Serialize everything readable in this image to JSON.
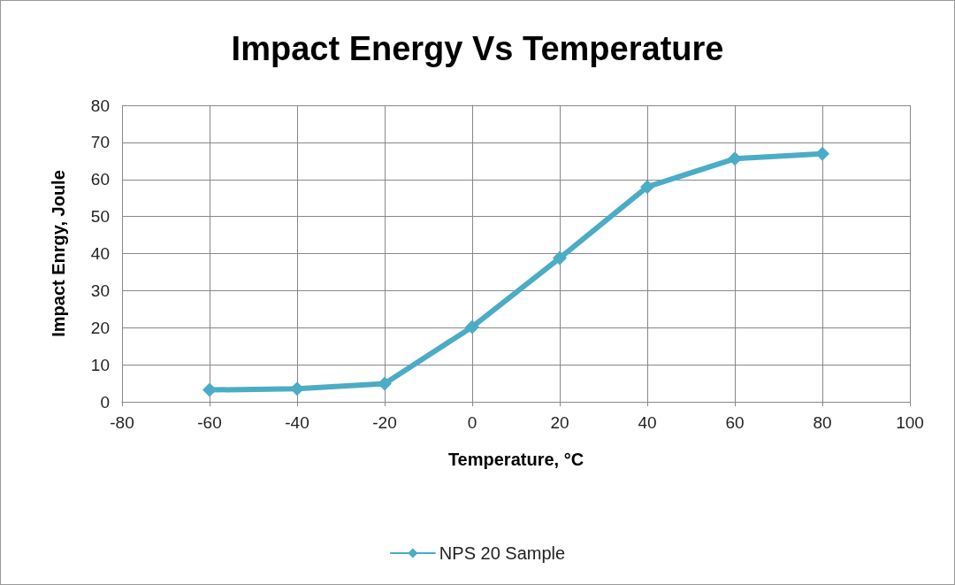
{
  "chart_data": {
    "type": "line",
    "title": "Impact Energy Vs Temperature",
    "xlabel": "Temperature, °C",
    "ylabel": "Impact Enrgy, Joule",
    "x": [
      -60,
      -40,
      -20,
      0,
      20,
      40,
      60,
      80
    ],
    "series": [
      {
        "name": "NPS 20 Sample",
        "color": "#4bacc6",
        "values": [
          3.2,
          3.5,
          4.9,
          20.2,
          38.8,
          58,
          65.6,
          66.9
        ]
      }
    ],
    "xlim": [
      -80,
      100
    ],
    "xticks": [
      -80,
      -60,
      -40,
      -20,
      0,
      20,
      40,
      60,
      80,
      100
    ],
    "ylim": [
      0,
      80
    ],
    "yticks": [
      0,
      10,
      20,
      30,
      40,
      50,
      60,
      70,
      80
    ],
    "grid": true,
    "legend": "bottom",
    "marker": "diamond",
    "line_style": "solid"
  }
}
